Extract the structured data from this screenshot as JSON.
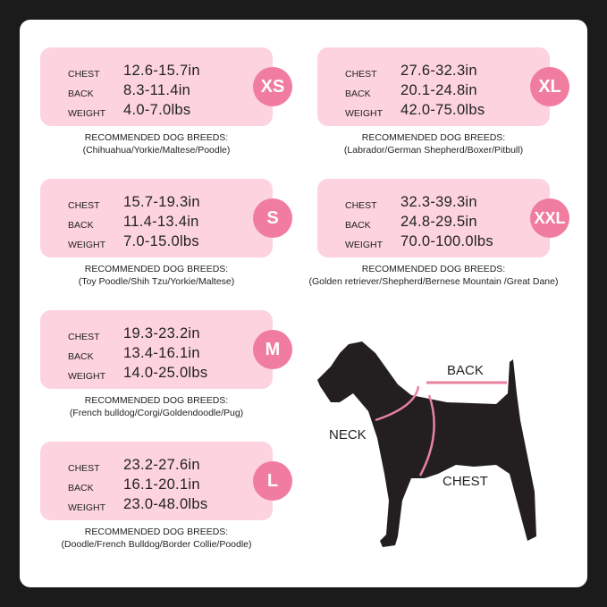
{
  "labels": {
    "chest": "CHEST",
    "back": "BACK",
    "weight": "WEIGHT",
    "breeds_heading": "RECOMMENDED DOG BREEDS:"
  },
  "sizes": [
    {
      "size": "XS",
      "chest": "12.6-15.7in",
      "back": "8.3-11.4in",
      "weight": "4.0-7.0lbs",
      "breeds": "(Chihuahua/Yorkie/Maltese/Poodle)"
    },
    {
      "size": "S",
      "chest": "15.7-19.3in",
      "back": "11.4-13.4in",
      "weight": "7.0-15.0lbs",
      "breeds": "(Toy Poodle/Shih Tzu/Yorkie/Maltese)"
    },
    {
      "size": "M",
      "chest": "19.3-23.2in",
      "back": "13.4-16.1in",
      "weight": "14.0-25.0lbs",
      "breeds": "(French bulldog/Corgi/Goldendoodle/Pug)"
    },
    {
      "size": "L",
      "chest": "23.2-27.6in",
      "back": "16.1-20.1in",
      "weight": "23.0-48.0lbs",
      "breeds": "(Doodle/French Bulldog/Border Collie/Poodle)"
    },
    {
      "size": "XL",
      "chest": "27.6-32.3in",
      "back": "20.1-24.8in",
      "weight": "42.0-75.0lbs",
      "breeds": "(Labrador/German Shepherd/Boxer/Pitbull)"
    },
    {
      "size": "XXL",
      "chest": "32.3-39.3in",
      "back": "24.8-29.5in",
      "weight": "70.0-100.0lbs",
      "breeds": "(Golden retriever/Shepherd/Bernese Mountain /Great Dane)"
    }
  ],
  "diagram": {
    "back": "BACK",
    "neck": "NECK",
    "chest": "CHEST"
  },
  "colors": {
    "card": "#fcd3de",
    "badge": "#f07da0",
    "measure_line": "#e8829f",
    "silhouette": "#231f20"
  }
}
